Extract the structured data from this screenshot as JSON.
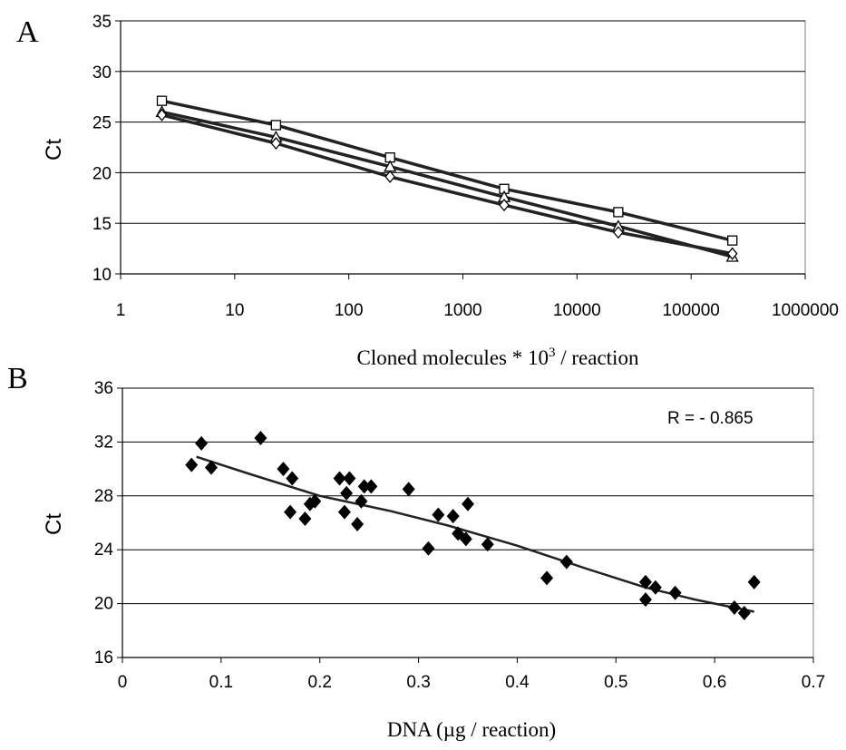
{
  "chart_data": [
    {
      "panel_label": "A",
      "type": "line",
      "xscale": "log",
      "xlim": [
        1,
        1000000
      ],
      "ylim": [
        10,
        35
      ],
      "xticks": [
        "1",
        "10",
        "100",
        "1000",
        "10000",
        "100000",
        "1000000"
      ],
      "yticks": [
        "10",
        "15",
        "20",
        "25",
        "30",
        "35"
      ],
      "ylabel": "Ct",
      "xlabel_main": "Cloned molecules * 10",
      "xlabel_sup": "3",
      "xlabel_tail": " / reaction",
      "grid": "horizontal",
      "x": [
        2.3,
        23,
        230,
        2300,
        23000,
        230000
      ],
      "series": [
        {
          "marker": "square",
          "values": [
            27.1,
            24.7,
            21.5,
            18.4,
            16.1,
            13.3
          ]
        },
        {
          "marker": "triangle",
          "values": [
            26.0,
            23.5,
            20.6,
            17.6,
            14.7,
            11.7
          ]
        },
        {
          "marker": "diamond",
          "values": [
            25.7,
            22.9,
            19.6,
            16.8,
            14.1,
            12.0
          ]
        }
      ]
    },
    {
      "panel_label": "B",
      "type": "scatter",
      "xlim": [
        0,
        0.7
      ],
      "ylim": [
        16,
        36
      ],
      "xticks": [
        "0",
        "0.1",
        "0.2",
        "0.3",
        "0.4",
        "0.5",
        "0.6",
        "0.7"
      ],
      "yticks": [
        "16",
        "20",
        "24",
        "28",
        "32",
        "36"
      ],
      "ylabel": "Ct",
      "xlabel": "DNA (µg / reaction)",
      "annotation": "R = - 0.865",
      "grid": "horizontal",
      "marker": "filled-diamond",
      "points": [
        [
          0.07,
          30.3
        ],
        [
          0.08,
          31.9
        ],
        [
          0.09,
          30.1
        ],
        [
          0.14,
          32.3
        ],
        [
          0.163,
          30.0
        ],
        [
          0.17,
          26.8
        ],
        [
          0.172,
          29.3
        ],
        [
          0.185,
          26.3
        ],
        [
          0.19,
          27.4
        ],
        [
          0.195,
          27.6
        ],
        [
          0.22,
          29.3
        ],
        [
          0.225,
          26.8
        ],
        [
          0.227,
          28.2
        ],
        [
          0.23,
          29.3
        ],
        [
          0.238,
          25.9
        ],
        [
          0.242,
          27.6
        ],
        [
          0.245,
          28.7
        ],
        [
          0.252,
          28.7
        ],
        [
          0.29,
          28.5
        ],
        [
          0.31,
          24.1
        ],
        [
          0.32,
          26.6
        ],
        [
          0.335,
          26.5
        ],
        [
          0.34,
          25.2
        ],
        [
          0.348,
          24.8
        ],
        [
          0.35,
          27.4
        ],
        [
          0.37,
          24.4
        ],
        [
          0.43,
          21.9
        ],
        [
          0.45,
          23.1
        ],
        [
          0.53,
          21.6
        ],
        [
          0.53,
          20.3
        ],
        [
          0.54,
          21.2
        ],
        [
          0.56,
          20.8
        ],
        [
          0.62,
          19.7
        ],
        [
          0.63,
          19.3
        ],
        [
          0.64,
          21.6
        ]
      ],
      "trend": [
        [
          0.075,
          30.9
        ],
        [
          0.13,
          29.6
        ],
        [
          0.2,
          28.0
        ],
        [
          0.27,
          26.9
        ],
        [
          0.33,
          25.8
        ],
        [
          0.4,
          24.3
        ],
        [
          0.47,
          22.6
        ],
        [
          0.53,
          21.2
        ],
        [
          0.58,
          20.3
        ],
        [
          0.64,
          19.4
        ]
      ]
    }
  ]
}
